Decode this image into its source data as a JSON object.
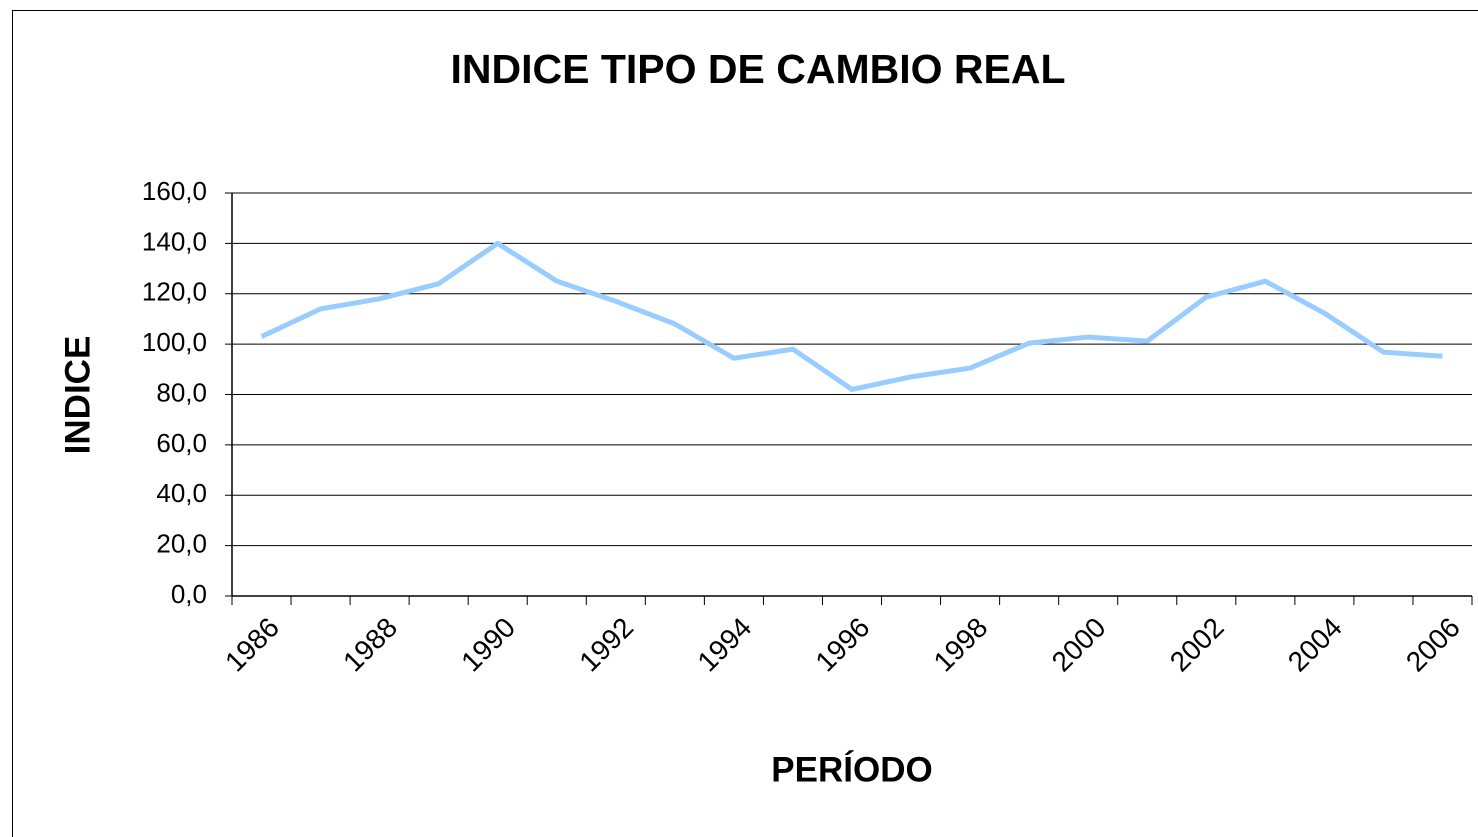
{
  "chart_data": {
    "type": "line",
    "title": "INDICE TIPO DE CAMBIO REAL",
    "x_label": "PERÍODO",
    "y_label": "INDICE",
    "categories": [
      "1986",
      null,
      "1988",
      null,
      "1990",
      null,
      "1992",
      null,
      "1994",
      null,
      "1996",
      null,
      "1998",
      null,
      "2000",
      null,
      "2002",
      null,
      "2004",
      null,
      "2006"
    ],
    "series": [
      {
        "name": "INDICE",
        "color": "#99ccff",
        "values": [
          103,
          114,
          118,
          124,
          140,
          125,
          117,
          108,
          94.4,
          98,
          82,
          87,
          90.5,
          100.4,
          102.8,
          101.2,
          118.7,
          125,
          112.3,
          96.8,
          95.2
        ]
      }
    ],
    "ylim": [
      0,
      160
    ],
    "yticks": [
      {
        "value": 0,
        "label": "0,0"
      },
      {
        "value": 20,
        "label": "20,0"
      },
      {
        "value": 40,
        "label": "40,0"
      },
      {
        "value": 60,
        "label": "60,0"
      },
      {
        "value": 80,
        "label": "80,0"
      },
      {
        "value": 100,
        "label": "100,0"
      },
      {
        "value": 120,
        "label": "120,0"
      },
      {
        "value": 140,
        "label": "140,0"
      },
      {
        "value": 160,
        "label": "160,0"
      }
    ],
    "grid": true
  }
}
